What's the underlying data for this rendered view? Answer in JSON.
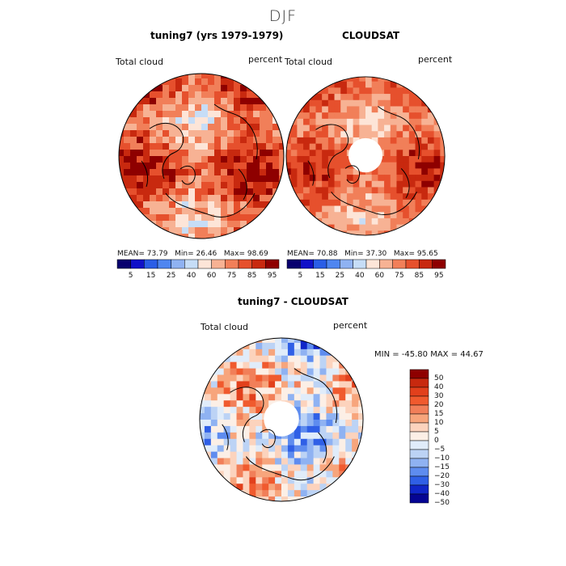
{
  "season": "DJF",
  "colors": {
    "levels12": [
      "#08006e",
      "#1010c8",
      "#2a5de6",
      "#4f86f0",
      "#8fb2f2",
      "#c6ddf7",
      "#fde5d8",
      "#f7b294",
      "#f17f59",
      "#e6502d",
      "#c8290f",
      "#8e0000"
    ],
    "levels_diff": [
      "#8e0000",
      "#c8290f",
      "#e2401c",
      "#f05a2e",
      "#f17f59",
      "#f7a57c",
      "#fcd3bd",
      "#fcefe6",
      "#e0ecfa",
      "#bcd3f5",
      "#8fb2f2",
      "#5e8cef",
      "#2f5fe6",
      "#1026c8",
      "#050593"
    ],
    "coast": "#000000"
  },
  "panels": {
    "model": {
      "title": "tuning7 (yrs 1979-1979)",
      "variable": "Total cloud",
      "units": "percent",
      "stats": {
        "mean_label": "MEAN=",
        "mean": "73.79",
        "min_label": "Min=",
        "min": "26.46",
        "max_label": "Max=",
        "max": "98.69"
      }
    },
    "obs": {
      "title": "CLOUDSAT",
      "variable": "Total cloud",
      "units": "percent",
      "stats": {
        "mean_label": "MEAN=",
        "mean": "70.88",
        "min_label": "Min=",
        "min": "37.30",
        "max_label": "Max=",
        "max": "95.65"
      }
    },
    "diff": {
      "title": "tuning7 - CLOUDSAT",
      "variable": "Total cloud",
      "units": "percent",
      "minmax": "MIN = -45.80 MAX =  44.67"
    }
  },
  "colorbar_ticks": [
    "5",
    "15",
    "25",
    "40",
    "60",
    "75",
    "85",
    "95"
  ],
  "diff_colorbar_ticks": [
    "50",
    "40",
    "30",
    "20",
    "15",
    "10",
    "5",
    "0",
    "−5",
    "−10",
    "−15",
    "−20",
    "−30",
    "−40",
    "−50"
  ]
}
